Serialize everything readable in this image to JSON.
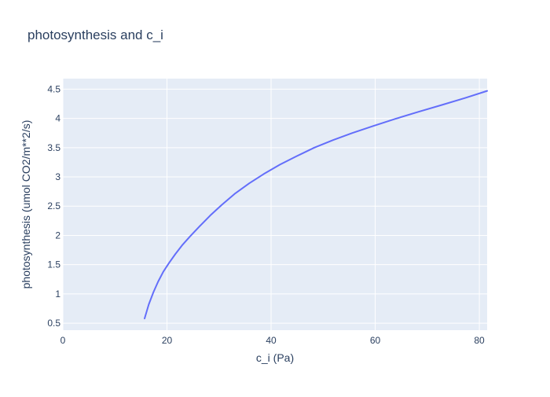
{
  "chart_data": {
    "type": "line",
    "title": "photosynthesis and c_i",
    "xlabel": "c_i (Pa)",
    "ylabel": "photosynthesis (umol CO2/m**2/s)",
    "xlim": [
      0,
      81.5
    ],
    "ylim": [
      0.38,
      4.68
    ],
    "x_ticks": [
      0,
      20,
      40,
      60,
      80
    ],
    "y_ticks": [
      0.5,
      1,
      1.5,
      2,
      2.5,
      3,
      3.5,
      4,
      4.5
    ],
    "x_tick_labels": [
      "0",
      "20",
      "40",
      "60",
      "80"
    ],
    "y_tick_labels": [
      "0.5",
      "1",
      "1.5",
      "2",
      "2.5",
      "3",
      "3.5",
      "4",
      "4.5"
    ],
    "grid": true,
    "series": [
      {
        "color": "#636efa",
        "x": [
          15.7,
          16.5,
          17.4,
          18.3,
          19.3,
          20.4,
          21.6,
          22.9,
          24.4,
          26.2,
          28.3,
          30.5,
          33.0,
          35.8,
          38.6,
          41.7,
          44.8,
          48.3,
          51.9,
          55.6,
          59.6,
          63.8,
          68.2,
          72.8,
          77.3,
          81.5
        ],
        "y": [
          0.58,
          0.82,
          1.03,
          1.21,
          1.38,
          1.53,
          1.68,
          1.83,
          1.98,
          2.15,
          2.34,
          2.52,
          2.71,
          2.89,
          3.05,
          3.21,
          3.35,
          3.5,
          3.63,
          3.75,
          3.87,
          3.99,
          4.11,
          4.23,
          4.35,
          4.47
        ]
      }
    ]
  },
  "colors": {
    "plot_bg": "#e5ecf6",
    "grid": "#ffffff",
    "text": "#2a3f5f",
    "line": "#636efa"
  }
}
